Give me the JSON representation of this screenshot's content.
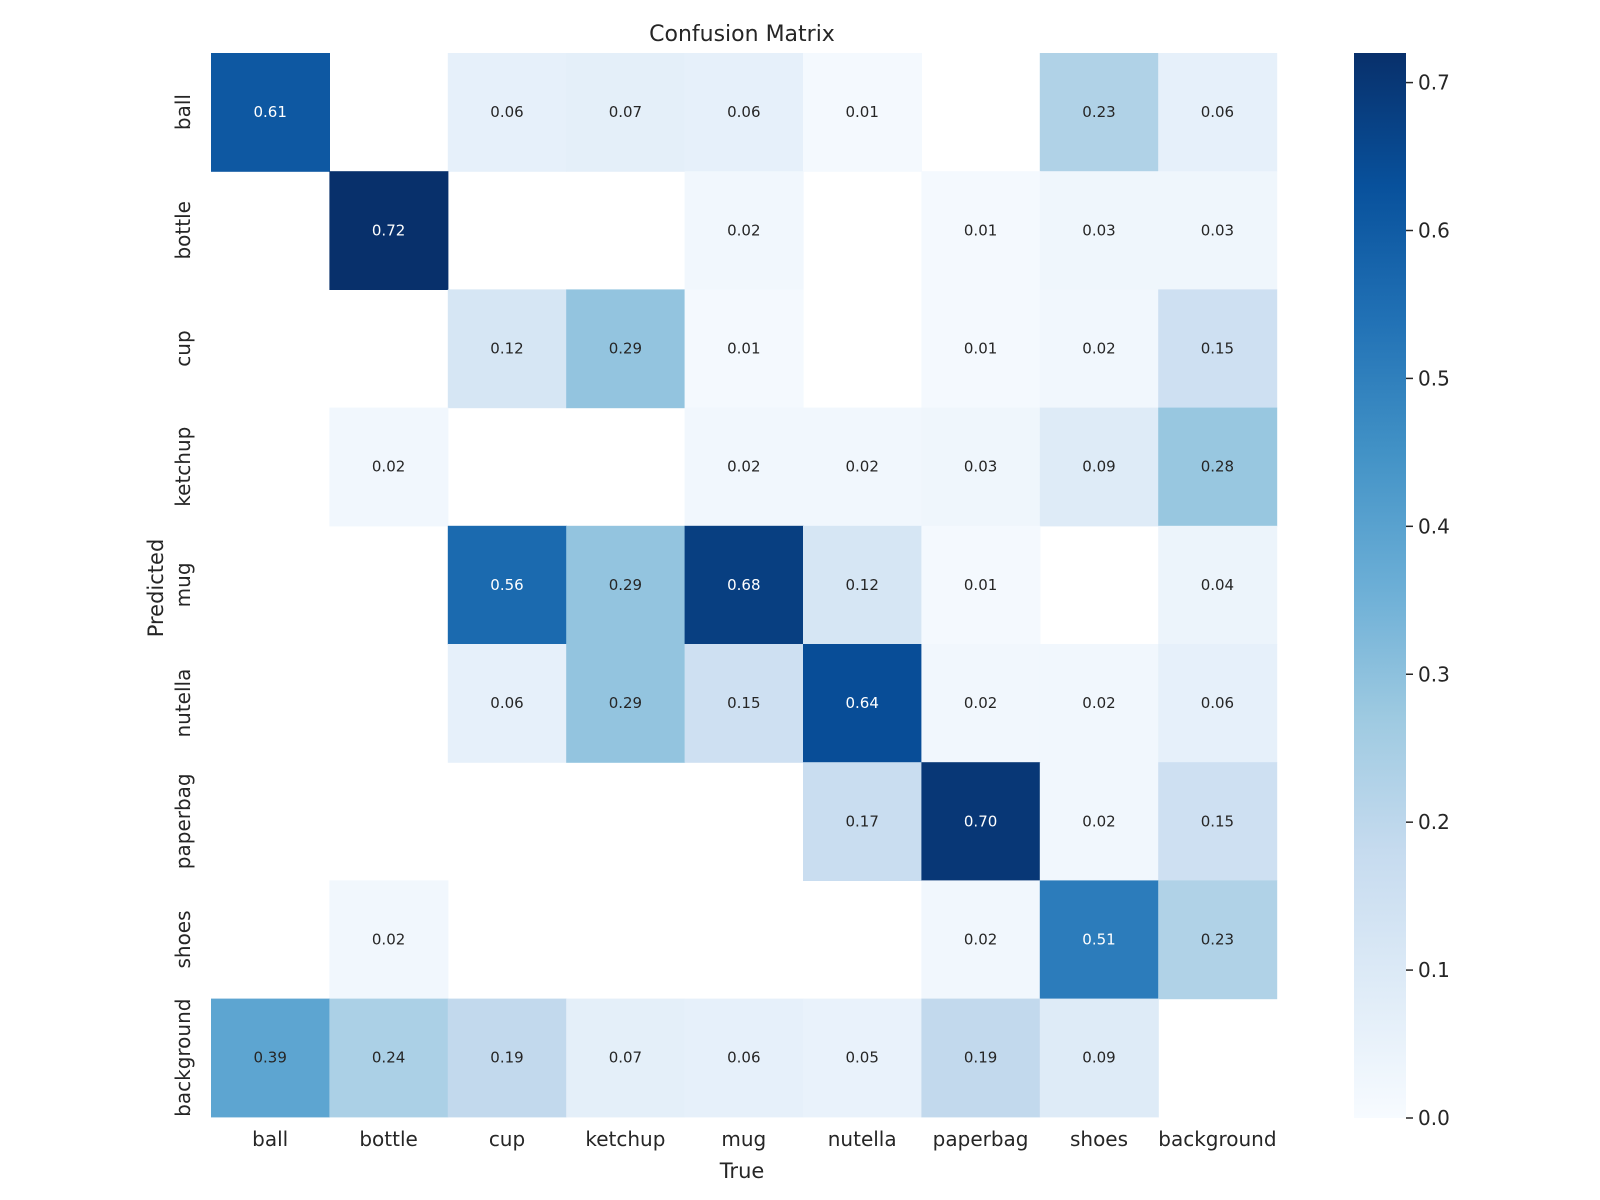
{
  "chart_data": {
    "type": "heatmap",
    "title": "Confusion Matrix",
    "xlabel": "True",
    "ylabel": "Predicted",
    "x_categories": [
      "ball",
      "bottle",
      "cup",
      "ketchup",
      "mug",
      "nutella",
      "paperbag",
      "shoes",
      "background"
    ],
    "y_categories": [
      "ball",
      "bottle",
      "cup",
      "ketchup",
      "mug",
      "nutella",
      "paperbag",
      "shoes",
      "background"
    ],
    "values": [
      [
        0.61,
        null,
        0.06,
        0.07,
        0.06,
        0.01,
        null,
        0.23,
        0.06
      ],
      [
        null,
        0.72,
        null,
        null,
        0.02,
        null,
        0.01,
        0.03,
        0.03
      ],
      [
        null,
        null,
        0.12,
        0.29,
        0.01,
        null,
        0.01,
        0.02,
        0.15
      ],
      [
        null,
        0.02,
        null,
        null,
        0.02,
        0.02,
        0.03,
        0.09,
        0.28
      ],
      [
        null,
        null,
        0.56,
        0.29,
        0.68,
        0.12,
        0.01,
        null,
        0.04
      ],
      [
        null,
        null,
        0.06,
        0.29,
        0.15,
        0.64,
        0.02,
        0.02,
        0.06
      ],
      [
        null,
        null,
        null,
        null,
        null,
        0.17,
        0.7,
        0.02,
        0.15
      ],
      [
        null,
        0.02,
        null,
        null,
        null,
        null,
        0.02,
        0.51,
        0.23
      ],
      [
        0.39,
        0.24,
        0.19,
        0.07,
        0.06,
        0.05,
        0.19,
        0.09,
        null
      ]
    ],
    "value_format": "0.00",
    "colormap": "Blues",
    "vmin": 0.0,
    "vmax": 0.72,
    "colorbar_ticks": [
      "0.0",
      "0.1",
      "0.2",
      "0.3",
      "0.4",
      "0.5",
      "0.6",
      "0.7"
    ],
    "colorbar_tick_values": [
      0.0,
      0.1,
      0.2,
      0.3,
      0.4,
      0.5,
      0.6,
      0.7
    ]
  }
}
